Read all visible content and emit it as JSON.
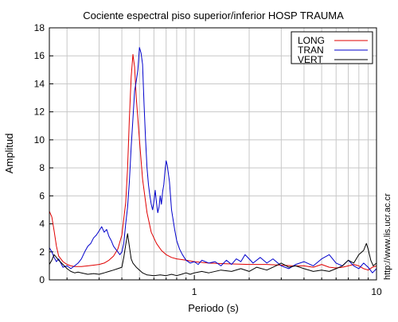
{
  "chart_data": {
    "type": "line",
    "title": "Cociente espectral piso superior/inferior  HOSP TRAUMA",
    "xlabel": "Periodo (s)",
    "ylabel": "Amplitud",
    "xscale": "log",
    "xlim": [
      0.16,
      10
    ],
    "ylim": [
      0,
      18
    ],
    "xticks": [
      1,
      10
    ],
    "yticks": [
      0,
      2,
      4,
      6,
      8,
      10,
      12,
      14,
      16,
      18
    ],
    "grid": true,
    "legend_position": "top-right",
    "watermark": "http://www.lis.ucr.ac.cr",
    "series": [
      {
        "name": "LONG",
        "color": "#e00000",
        "points": [
          [
            0.16,
            4.9
          ],
          [
            0.165,
            4.5
          ],
          [
            0.17,
            3.5
          ],
          [
            0.175,
            2.4
          ],
          [
            0.18,
            1.7
          ],
          [
            0.19,
            1.3
          ],
          [
            0.2,
            1.1
          ],
          [
            0.21,
            1.0
          ],
          [
            0.22,
            0.95
          ],
          [
            0.24,
            0.95
          ],
          [
            0.26,
            1.0
          ],
          [
            0.28,
            1.05
          ],
          [
            0.3,
            1.1
          ],
          [
            0.32,
            1.2
          ],
          [
            0.34,
            1.4
          ],
          [
            0.36,
            1.7
          ],
          [
            0.38,
            2.2
          ],
          [
            0.4,
            3.2
          ],
          [
            0.42,
            5.5
          ],
          [
            0.43,
            8.0
          ],
          [
            0.44,
            11.5
          ],
          [
            0.45,
            14.5
          ],
          [
            0.46,
            16.1
          ],
          [
            0.47,
            15.2
          ],
          [
            0.48,
            13.0
          ],
          [
            0.5,
            10.0
          ],
          [
            0.52,
            7.2
          ],
          [
            0.55,
            4.8
          ],
          [
            0.58,
            3.4
          ],
          [
            0.62,
            2.6
          ],
          [
            0.66,
            2.1
          ],
          [
            0.7,
            1.8
          ],
          [
            0.75,
            1.6
          ],
          [
            0.8,
            1.5
          ],
          [
            0.9,
            1.4
          ],
          [
            1.0,
            1.3
          ],
          [
            1.2,
            1.2
          ],
          [
            1.5,
            1.15
          ],
          [
            2.0,
            1.1
          ],
          [
            2.5,
            1.1
          ],
          [
            3.0,
            1.05
          ],
          [
            3.5,
            1.0
          ],
          [
            4.0,
            1.0
          ],
          [
            4.5,
            0.9
          ],
          [
            5.0,
            1.1
          ],
          [
            5.5,
            0.9
          ],
          [
            6.0,
            0.85
          ],
          [
            6.5,
            0.9
          ],
          [
            7.0,
            1.0
          ],
          [
            7.5,
            1.1
          ],
          [
            8.0,
            1.0
          ],
          [
            8.5,
            0.8
          ],
          [
            9.0,
            0.7
          ],
          [
            9.5,
            0.9
          ],
          [
            10.0,
            1.0
          ]
        ]
      },
      {
        "name": "TRAN",
        "color": "#0000cc",
        "points": [
          [
            0.16,
            2.3
          ],
          [
            0.165,
            2.0
          ],
          [
            0.17,
            1.6
          ],
          [
            0.175,
            1.3
          ],
          [
            0.18,
            1.5
          ],
          [
            0.185,
            1.2
          ],
          [
            0.19,
            0.9
          ],
          [
            0.2,
            1.0
          ],
          [
            0.21,
            0.8
          ],
          [
            0.22,
            1.0
          ],
          [
            0.23,
            1.2
          ],
          [
            0.24,
            1.5
          ],
          [
            0.25,
            2.0
          ],
          [
            0.26,
            2.4
          ],
          [
            0.27,
            2.6
          ],
          [
            0.28,
            3.0
          ],
          [
            0.29,
            3.2
          ],
          [
            0.3,
            3.5
          ],
          [
            0.31,
            3.8
          ],
          [
            0.32,
            3.4
          ],
          [
            0.33,
            3.6
          ],
          [
            0.34,
            3.1
          ],
          [
            0.35,
            2.8
          ],
          [
            0.36,
            2.4
          ],
          [
            0.37,
            2.2
          ],
          [
            0.38,
            2.0
          ],
          [
            0.39,
            1.8
          ],
          [
            0.4,
            2.0
          ],
          [
            0.41,
            2.6
          ],
          [
            0.42,
            4.0
          ],
          [
            0.43,
            5.2
          ],
          [
            0.44,
            7.0
          ],
          [
            0.45,
            9.5
          ],
          [
            0.46,
            11.5
          ],
          [
            0.47,
            13.5
          ],
          [
            0.48,
            14.2
          ],
          [
            0.49,
            15.0
          ],
          [
            0.5,
            16.6
          ],
          [
            0.51,
            16.2
          ],
          [
            0.52,
            15.4
          ],
          [
            0.53,
            12.5
          ],
          [
            0.54,
            10.0
          ],
          [
            0.55,
            8.0
          ],
          [
            0.56,
            6.8
          ],
          [
            0.57,
            6.0
          ],
          [
            0.58,
            5.4
          ],
          [
            0.59,
            5.0
          ],
          [
            0.6,
            5.6
          ],
          [
            0.61,
            6.4
          ],
          [
            0.62,
            5.5
          ],
          [
            0.63,
            4.8
          ],
          [
            0.64,
            5.2
          ],
          [
            0.65,
            6.0
          ],
          [
            0.66,
            5.4
          ],
          [
            0.67,
            6.3
          ],
          [
            0.68,
            6.8
          ],
          [
            0.69,
            7.8
          ],
          [
            0.7,
            8.5
          ],
          [
            0.71,
            8.2
          ],
          [
            0.72,
            7.6
          ],
          [
            0.73,
            7.0
          ],
          [
            0.74,
            6.0
          ],
          [
            0.75,
            5.0
          ],
          [
            0.76,
            4.5
          ],
          [
            0.78,
            3.6
          ],
          [
            0.8,
            2.8
          ],
          [
            0.83,
            2.2
          ],
          [
            0.86,
            1.8
          ],
          [
            0.9,
            1.4
          ],
          [
            0.95,
            1.2
          ],
          [
            1.0,
            1.3
          ],
          [
            1.05,
            1.1
          ],
          [
            1.1,
            1.4
          ],
          [
            1.2,
            1.2
          ],
          [
            1.3,
            1.3
          ],
          [
            1.4,
            1.0
          ],
          [
            1.5,
            1.4
          ],
          [
            1.6,
            1.1
          ],
          [
            1.7,
            1.5
          ],
          [
            1.8,
            1.3
          ],
          [
            1.9,
            1.8
          ],
          [
            2.0,
            1.5
          ],
          [
            2.1,
            1.2
          ],
          [
            2.3,
            1.6
          ],
          [
            2.5,
            1.2
          ],
          [
            2.7,
            1.5
          ],
          [
            3.0,
            1.0
          ],
          [
            3.3,
            0.8
          ],
          [
            3.6,
            1.1
          ],
          [
            4.0,
            1.3
          ],
          [
            4.5,
            1.0
          ],
          [
            5.0,
            1.5
          ],
          [
            5.5,
            1.8
          ],
          [
            6.0,
            1.2
          ],
          [
            6.5,
            1.0
          ],
          [
            7.0,
            1.4
          ],
          [
            7.5,
            1.0
          ],
          [
            8.0,
            0.8
          ],
          [
            8.5,
            1.2
          ],
          [
            9.0,
            0.9
          ],
          [
            9.5,
            0.5
          ],
          [
            10.0,
            0.8
          ]
        ]
      },
      {
        "name": "VERT",
        "color": "#000000",
        "points": [
          [
            0.16,
            1.1
          ],
          [
            0.165,
            1.4
          ],
          [
            0.17,
            1.8
          ],
          [
            0.175,
            1.6
          ],
          [
            0.18,
            1.4
          ],
          [
            0.19,
            1.1
          ],
          [
            0.2,
            0.8
          ],
          [
            0.21,
            0.6
          ],
          [
            0.22,
            0.5
          ],
          [
            0.23,
            0.55
          ],
          [
            0.24,
            0.5
          ],
          [
            0.26,
            0.4
          ],
          [
            0.28,
            0.45
          ],
          [
            0.3,
            0.4
          ],
          [
            0.32,
            0.5
          ],
          [
            0.34,
            0.6
          ],
          [
            0.36,
            0.7
          ],
          [
            0.38,
            0.8
          ],
          [
            0.4,
            0.9
          ],
          [
            0.41,
            1.6
          ],
          [
            0.42,
            2.5
          ],
          [
            0.43,
            3.3
          ],
          [
            0.44,
            2.4
          ],
          [
            0.45,
            1.5
          ],
          [
            0.46,
            1.2
          ],
          [
            0.48,
            0.9
          ],
          [
            0.5,
            0.7
          ],
          [
            0.52,
            0.5
          ],
          [
            0.55,
            0.35
          ],
          [
            0.6,
            0.3
          ],
          [
            0.65,
            0.35
          ],
          [
            0.7,
            0.3
          ],
          [
            0.75,
            0.4
          ],
          [
            0.8,
            0.3
          ],
          [
            0.85,
            0.4
          ],
          [
            0.9,
            0.5
          ],
          [
            0.95,
            0.4
          ],
          [
            1.0,
            0.5
          ],
          [
            1.1,
            0.6
          ],
          [
            1.2,
            0.5
          ],
          [
            1.4,
            0.7
          ],
          [
            1.6,
            0.6
          ],
          [
            1.8,
            0.8
          ],
          [
            2.0,
            0.6
          ],
          [
            2.2,
            0.9
          ],
          [
            2.5,
            0.7
          ],
          [
            2.8,
            1.0
          ],
          [
            3.0,
            1.2
          ],
          [
            3.3,
            0.9
          ],
          [
            3.6,
            1.0
          ],
          [
            4.0,
            0.8
          ],
          [
            4.5,
            0.6
          ],
          [
            5.0,
            0.7
          ],
          [
            5.5,
            0.6
          ],
          [
            6.0,
            0.8
          ],
          [
            6.5,
            1.0
          ],
          [
            7.0,
            1.4
          ],
          [
            7.5,
            1.2
          ],
          [
            8.0,
            1.8
          ],
          [
            8.5,
            2.1
          ],
          [
            8.8,
            2.6
          ],
          [
            9.0,
            2.2
          ],
          [
            9.3,
            1.4
          ],
          [
            9.6,
            1.0
          ],
          [
            10.0,
            1.2
          ]
        ]
      }
    ]
  }
}
